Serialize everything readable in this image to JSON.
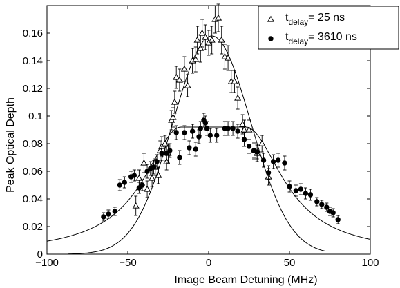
{
  "chart_data": {
    "type": "scatter",
    "title": "",
    "xlabel": "Image Beam Detuning (MHz)",
    "ylabel": "Peak Optical Depth",
    "xlim": [
      -100,
      100
    ],
    "ylim": [
      0,
      0.18
    ],
    "xticks": [
      -100,
      -50,
      0,
      50,
      100
    ],
    "xtick_labels": [
      "−100",
      "−50",
      "0",
      "50",
      "100"
    ],
    "yticks": [
      0,
      0.02,
      0.04,
      0.06,
      0.08,
      0.1,
      0.12,
      0.14,
      0.16
    ],
    "ytick_labels": [
      "0",
      "0.02",
      "0.04",
      "0.06",
      "0.08",
      "0.1",
      "0.12",
      "0.14",
      "0.16"
    ],
    "grid": false,
    "legend_position": "top-right",
    "series": [
      {
        "name_main": "t",
        "name_sub": "delay",
        "name_rest": "= 25 ns",
        "marker": "open-triangle",
        "points": [
          [
            -45,
            0.035,
            0.007
          ],
          [
            -43,
            0.055,
            0.006
          ],
          [
            -40,
            0.066,
            0.007
          ],
          [
            -38,
            0.047,
            0.006
          ],
          [
            -35,
            0.055,
            0.006
          ],
          [
            -33,
            0.063,
            0.006
          ],
          [
            -31,
            0.057,
            0.006
          ],
          [
            -30,
            0.075,
            0.007
          ],
          [
            -29,
            0.078,
            0.007
          ],
          [
            -27,
            0.08,
            0.006
          ],
          [
            -26,
            0.067,
            0.006
          ],
          [
            -25,
            0.073,
            0.007
          ],
          [
            -23,
            0.097,
            0.007
          ],
          [
            -22,
            0.099,
            0.007
          ],
          [
            -21,
            0.11,
            0.008
          ],
          [
            -20,
            0.128,
            0.008
          ],
          [
            -18,
            0.126,
            0.008
          ],
          [
            -15,
            0.134,
            0.009
          ],
          [
            -13,
            0.122,
            0.008
          ],
          [
            -10,
            0.14,
            0.009
          ],
          [
            -8,
            0.141,
            0.009
          ],
          [
            -7,
            0.155,
            0.01
          ],
          [
            -5,
            0.149,
            0.01
          ],
          [
            -4,
            0.16,
            0.01
          ],
          [
            -2,
            0.157,
            0.009
          ],
          [
            0,
            0.153,
            0.009
          ],
          [
            2,
            0.155,
            0.01
          ],
          [
            4,
            0.17,
            0.01
          ],
          [
            6,
            0.171,
            0.01
          ],
          [
            8,
            0.155,
            0.01
          ],
          [
            10,
            0.143,
            0.009
          ],
          [
            12,
            0.142,
            0.009
          ],
          [
            14,
            0.125,
            0.008
          ],
          [
            16,
            0.125,
            0.008
          ],
          [
            18,
            0.113,
            0.008
          ],
          [
            21,
            0.094,
            0.007
          ],
          [
            22,
            0.09,
            0.007
          ],
          [
            25,
            0.09,
            0.007
          ],
          [
            28,
            0.075,
            0.006
          ],
          [
            30,
            0.073,
            0.006
          ],
          [
            33,
            0.08,
            0.006
          ],
          [
            37,
            0.056,
            0.006
          ]
        ]
      },
      {
        "name_main": "t",
        "name_sub": "delay",
        "name_rest": "= 3610 ns",
        "marker": "filled-circle",
        "points": [
          [
            -65,
            0.027,
            0.003
          ],
          [
            -62,
            0.029,
            0.003
          ],
          [
            -58,
            0.031,
            0.003
          ],
          [
            -55,
            0.05,
            0.004
          ],
          [
            -52,
            0.052,
            0.004
          ],
          [
            -48,
            0.056,
            0.004
          ],
          [
            -46,
            0.057,
            0.004
          ],
          [
            -43,
            0.048,
            0.004
          ],
          [
            -41,
            0.05,
            0.004
          ],
          [
            -38,
            0.06,
            0.005
          ],
          [
            -36,
            0.062,
            0.005
          ],
          [
            -34,
            0.063,
            0.005
          ],
          [
            -32,
            0.067,
            0.005
          ],
          [
            -29,
            0.073,
            0.005
          ],
          [
            -26,
            0.073,
            0.005
          ],
          [
            -24,
            0.075,
            0.005
          ],
          [
            -20,
            0.088,
            0.005
          ],
          [
            -18,
            0.07,
            0.005
          ],
          [
            -15,
            0.088,
            0.005
          ],
          [
            -12,
            0.077,
            0.005
          ],
          [
            -10,
            0.089,
            0.005
          ],
          [
            -8,
            0.076,
            0.005
          ],
          [
            -6,
            0.085,
            0.005
          ],
          [
            -5,
            0.091,
            0.005
          ],
          [
            -3,
            0.097,
            0.005
          ],
          [
            -2,
            0.095,
            0.005
          ],
          [
            -1,
            0.091,
            0.005
          ],
          [
            1,
            0.086,
            0.005
          ],
          [
            5,
            0.086,
            0.005
          ],
          [
            10,
            0.091,
            0.005
          ],
          [
            12,
            0.091,
            0.005
          ],
          [
            15,
            0.091,
            0.005
          ],
          [
            18,
            0.089,
            0.005
          ],
          [
            22,
            0.083,
            0.005
          ],
          [
            25,
            0.078,
            0.005
          ],
          [
            28,
            0.075,
            0.005
          ],
          [
            30,
            0.074,
            0.005
          ],
          [
            34,
            0.068,
            0.005
          ],
          [
            37,
            0.059,
            0.005
          ],
          [
            40,
            0.067,
            0.005
          ],
          [
            43,
            0.068,
            0.005
          ],
          [
            47,
            0.066,
            0.005
          ],
          [
            50,
            0.049,
            0.004
          ],
          [
            54,
            0.046,
            0.004
          ],
          [
            57,
            0.047,
            0.004
          ],
          [
            60,
            0.044,
            0.004
          ],
          [
            63,
            0.043,
            0.004
          ],
          [
            67,
            0.038,
            0.003
          ],
          [
            70,
            0.036,
            0.003
          ],
          [
            73,
            0.034,
            0.003
          ],
          [
            75,
            0.031,
            0.003
          ],
          [
            77,
            0.03,
            0.003
          ],
          [
            80,
            0.025,
            0.003
          ]
        ]
      }
    ],
    "fits": [
      {
        "shape": "gaussian",
        "amplitude": 0.158,
        "center": 2,
        "sigma": 24,
        "x_range": [
          -87,
          72
        ]
      },
      {
        "shape": "flat-top",
        "amplitude": 0.092,
        "center": 3,
        "plateau_half_width": 20,
        "width": 28,
        "x_range": [
          -100,
          100
        ]
      }
    ]
  }
}
